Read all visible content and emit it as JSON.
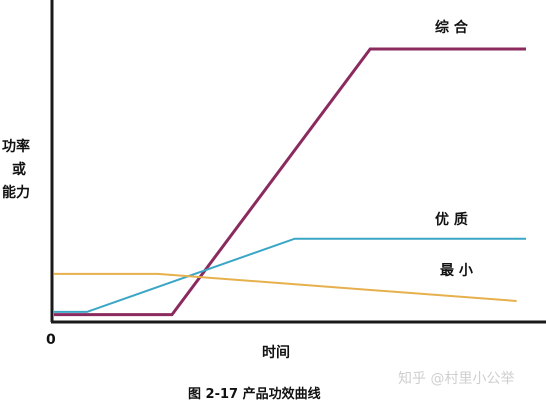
{
  "chart_data": {
    "type": "line",
    "title": "",
    "caption": "图 2-17  产品功效曲线",
    "xlabel": "时间",
    "ylabel_lines": [
      "功率",
      "或",
      "能力"
    ],
    "x_origin_label": "0",
    "xlim": [
      0,
      100
    ],
    "ylim": [
      0,
      100
    ],
    "grid": false,
    "series": [
      {
        "name": "综 合",
        "color": "#8b2a5e",
        "points": [
          [
            0,
            2
          ],
          [
            25,
            2
          ],
          [
            67,
            100
          ],
          [
            100,
            100
          ]
        ]
      },
      {
        "name": "优 质",
        "color": "#3aa6c6",
        "points": [
          [
            0,
            3
          ],
          [
            7,
            3
          ],
          [
            51,
            30
          ],
          [
            100,
            30
          ]
        ]
      },
      {
        "name": "最 小",
        "color": "#e6b04c",
        "points": [
          [
            0,
            17
          ],
          [
            22,
            17
          ],
          [
            98,
            7
          ]
        ]
      }
    ]
  },
  "watermark": "知乎 @村里小公举"
}
